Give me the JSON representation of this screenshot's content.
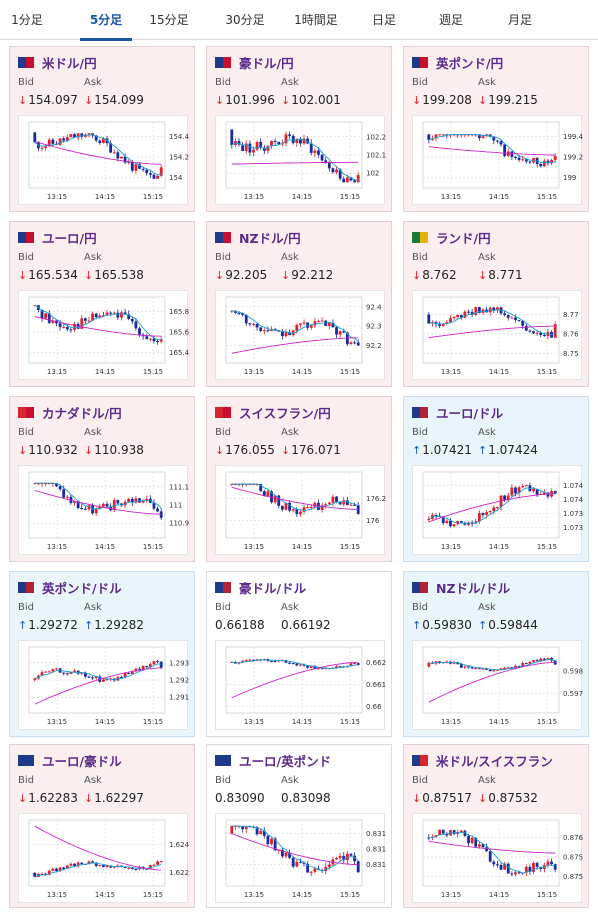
{
  "tabs": [
    {
      "label": "1分足",
      "active": false
    },
    {
      "label": "5分足",
      "active": true
    },
    {
      "label": "15分足",
      "active": false
    },
    {
      "label": "30分足",
      "active": false
    },
    {
      "label": "1時間足",
      "active": false
    },
    {
      "label": "日足",
      "active": false
    },
    {
      "label": "週足",
      "active": false
    },
    {
      "label": "月足",
      "active": false
    }
  ],
  "labels": {
    "bid": "Bid",
    "ask": "Ask"
  },
  "time_ticks": [
    "13:15",
    "14:15",
    "15:15"
  ],
  "colors": {
    "up": "#e0222a",
    "down": "#1a2a9c",
    "ma_short": "#1a9fd0",
    "ma_long": "#cc22cc"
  },
  "cards": [
    {
      "name": "米ドル/円",
      "flag": [
        "#1d3b8a",
        "#c8102e"
      ],
      "bid": "154.097",
      "ask": "154.099",
      "direction": "down",
      "theme": "jpy",
      "chart_data": {
        "type": "candlestick",
        "y_ticks": [
          "154.4",
          "154.2",
          "154"
        ],
        "y_tick_values": [
          154.4,
          154.2,
          154.0
        ],
        "ylim": [
          153.92,
          154.52
        ],
        "start": 154.44,
        "end": 154.1,
        "high": 154.43,
        "low": 153.99,
        "ma_long_start": 154.35,
        "ma_long_end": 154.13,
        "seed": 11
      }
    },
    {
      "name": "豪ドル/円",
      "flag": [
        "#1d3b8a",
        "#c8102e"
      ],
      "bid": "101.996",
      "ask": "102.001",
      "direction": "down",
      "theme": "jpy",
      "chart_data": {
        "type": "candlestick",
        "y_ticks": [
          "102.2",
          "102.1",
          "102"
        ],
        "y_tick_values": [
          102.2,
          102.1,
          102.0
        ],
        "ylim": [
          101.93,
          102.27
        ],
        "start": 102.24,
        "end": 101.99,
        "high": 102.24,
        "low": 101.95,
        "ma_long_start": 102.05,
        "ma_long_end": 102.06,
        "seed": 23
      }
    },
    {
      "name": "英ポンド/円",
      "flag": [
        "#1d3b8a",
        "#c8102e"
      ],
      "bid": "199.208",
      "ask": "199.215",
      "direction": "down",
      "theme": "jpy",
      "chart_data": {
        "type": "candlestick",
        "y_ticks": [
          "199.4",
          "199.2",
          "199"
        ],
        "y_tick_values": [
          199.4,
          199.2,
          199.0
        ],
        "ylim": [
          198.92,
          199.52
        ],
        "start": 199.42,
        "end": 199.21,
        "high": 199.42,
        "low": 198.98,
        "ma_long_start": 199.3,
        "ma_long_end": 199.22,
        "seed": 37
      }
    },
    {
      "name": "ユーロ/円",
      "flag": [
        "#1d3b8a",
        "#c8102e"
      ],
      "bid": "165.534",
      "ask": "165.538",
      "direction": "down",
      "theme": "jpy",
      "chart_data": {
        "type": "candlestick",
        "y_ticks": [
          "165.8",
          "165.6",
          "165.4"
        ],
        "y_tick_values": [
          165.8,
          165.6,
          165.4
        ],
        "ylim": [
          165.32,
          165.92
        ],
        "start": 165.86,
        "end": 165.53,
        "high": 165.86,
        "low": 165.38,
        "ma_long_start": 165.75,
        "ma_long_end": 165.56,
        "seed": 41
      }
    },
    {
      "name": "NZドル/円",
      "flag": [
        "#1d3b8a",
        "#c8102e"
      ],
      "bid": "92.205",
      "ask": "92.212",
      "direction": "down",
      "theme": "jpy",
      "chart_data": {
        "type": "candlestick",
        "y_ticks": [
          "92.4",
          "92.3",
          "92.2"
        ],
        "y_tick_values": [
          92.4,
          92.3,
          92.2
        ],
        "ylim": [
          92.12,
          92.44
        ],
        "start": 92.38,
        "end": 92.2,
        "high": 92.38,
        "low": 92.15,
        "ma_long_start": 92.16,
        "ma_long_end": 92.24,
        "seed": 53
      }
    },
    {
      "name": "ランド/円",
      "flag": [
        "#1a7a3a",
        "#e8b10a"
      ],
      "bid": "8.762",
      "ask": "8.771",
      "direction": "down",
      "theme": "jpy",
      "chart_data": {
        "type": "candlestick",
        "y_ticks": [
          "8.77",
          "8.76",
          "8.75"
        ],
        "y_tick_values": [
          8.77,
          8.76,
          8.75
        ],
        "ylim": [
          8.746,
          8.778
        ],
        "start": 8.77,
        "end": 8.765,
        "high": 8.774,
        "low": 8.752,
        "ma_long_start": 8.758,
        "ma_long_end": 8.764,
        "seed": 61
      }
    },
    {
      "name": "カナダドル/円",
      "flag": [
        "#d8262e",
        "#c8102e"
      ],
      "bid": "110.932",
      "ask": "110.938",
      "direction": "down",
      "theme": "jpy",
      "chart_data": {
        "type": "candlestick",
        "y_ticks": [
          "111.1",
          "111",
          "110.9"
        ],
        "y_tick_values": [
          111.1,
          111.0,
          110.9
        ],
        "ylim": [
          110.83,
          111.17
        ],
        "start": 111.12,
        "end": 110.93,
        "high": 111.12,
        "low": 110.86,
        "ma_long_start": 111.08,
        "ma_long_end": 110.95,
        "seed": 71
      }
    },
    {
      "name": "スイスフラン/円",
      "flag": [
        "#d8262e",
        "#c8102e"
      ],
      "bid": "176.055",
      "ask": "176.071",
      "direction": "down",
      "theme": "jpy",
      "chart_data": {
        "type": "candlestick",
        "y_ticks": [
          "176.2",
          "176"
        ],
        "y_tick_values": [
          176.2,
          176.0
        ],
        "ylim": [
          175.86,
          176.42
        ],
        "start": 176.33,
        "end": 176.06,
        "high": 176.33,
        "low": 175.93,
        "ma_long_start": 176.3,
        "ma_long_end": 176.1,
        "seed": 83
      }
    },
    {
      "name": "ユーロ/ドル",
      "flag": [
        "#1d3b8a",
        "#b22234"
      ],
      "bid": "1.07421",
      "ask": "1.07424",
      "direction": "up",
      "theme": "usd",
      "chart_data": {
        "type": "candlestick",
        "y_ticks": [
          "1.0745",
          "1.074",
          "1.0735",
          "1.073"
        ],
        "y_tick_values": [
          1.0745,
          1.074,
          1.0735,
          1.073
        ],
        "ylim": [
          1.0727,
          1.0749
        ],
        "start": 1.0733,
        "end": 1.07421,
        "high": 1.0747,
        "low": 1.073,
        "ma_long_start": 1.0732,
        "ma_long_end": 1.0742,
        "seed": 97
      }
    },
    {
      "name": "英ポンド/ドル",
      "flag": [
        "#1d3b8a",
        "#b22234"
      ],
      "bid": "1.29272",
      "ask": "1.29282",
      "direction": "up",
      "theme": "usd",
      "chart_data": {
        "type": "candlestick",
        "y_ticks": [
          "1.293",
          "1.292",
          "1.291"
        ],
        "y_tick_values": [
          1.293,
          1.292,
          1.291
        ],
        "ylim": [
          1.2902,
          1.2938
        ],
        "start": 1.292,
        "end": 1.29272,
        "high": 1.2933,
        "low": 1.2917,
        "ma_long_start": 1.2906,
        "ma_long_end": 1.2927,
        "seed": 101
      }
    },
    {
      "name": "豪ドル/ドル",
      "flag": [
        "#1d3b8a",
        "#b22234"
      ],
      "bid": "0.66188",
      "ask": "0.66192",
      "direction": "none",
      "theme": "plain",
      "chart_data": {
        "type": "candlestick",
        "y_ticks": [
          "0.662",
          "0.661",
          "0.66"
        ],
        "y_tick_values": [
          0.662,
          0.661,
          0.66
        ],
        "ylim": [
          0.6598,
          0.6626
        ],
        "start": 0.662,
        "end": 0.66188,
        "high": 0.6624,
        "low": 0.6617,
        "ma_long_start": 0.6604,
        "ma_long_end": 0.662,
        "seed": 113
      }
    },
    {
      "name": "NZドル/ドル",
      "flag": [
        "#1d3b8a",
        "#b22234"
      ],
      "bid": "0.59830",
      "ask": "0.59844",
      "direction": "up",
      "theme": "usd",
      "chart_data": {
        "type": "candlestick",
        "y_ticks": [
          "0.598",
          "0.597"
        ],
        "y_tick_values": [
          0.598,
          0.597
        ],
        "ylim": [
          0.5962,
          0.599
        ],
        "start": 0.5982,
        "end": 0.5983,
        "high": 0.5988,
        "low": 0.5979,
        "ma_long_start": 0.5966,
        "ma_long_end": 0.5984,
        "seed": 127
      }
    },
    {
      "name": "ユーロ/豪ドル",
      "flag": [
        "#1d3b8a",
        "#1d3b8a"
      ],
      "bid": "1.62283",
      "ask": "1.62297",
      "direction": "down",
      "theme": "jpy",
      "chart_data": {
        "type": "candlestick",
        "y_ticks": [
          "1.624",
          "1.622"
        ],
        "y_tick_values": [
          1.624,
          1.622
        ],
        "ylim": [
          1.6212,
          1.6256
        ],
        "start": 1.622,
        "end": 1.62283,
        "high": 1.6231,
        "low": 1.6217,
        "ma_long_start": 1.6253,
        "ma_long_end": 1.6222,
        "seed": 131
      }
    },
    {
      "name": "ユーロ/英ポンド",
      "flag": [
        "#1d3b8a",
        "#1d3b8a"
      ],
      "bid": "0.83090",
      "ask": "0.83098",
      "direction": "none",
      "theme": "plain",
      "chart_data": {
        "type": "candlestick",
        "y_ticks": [
          "0.8314",
          "0.8312",
          "0.831"
        ],
        "y_tick_values": [
          0.8314,
          0.8312,
          0.831
        ],
        "ylim": [
          0.83075,
          0.83155
        ],
        "start": 0.8314,
        "end": 0.8309,
        "high": 0.8315,
        "low": 0.8308,
        "ma_long_start": 0.8314,
        "ma_long_end": 0.831,
        "seed": 139
      }
    },
    {
      "name": "米ドル/スイスフラン",
      "flag": [
        "#1d3b8a",
        "#d8262e"
      ],
      "bid": "0.87517",
      "ask": "0.87532",
      "direction": "down",
      "theme": "jpy",
      "chart_data": {
        "type": "candlestick",
        "y_ticks": [
          "0.876",
          "0.8755",
          "0.875"
        ],
        "y_tick_values": [
          0.876,
          0.8755,
          0.875
        ],
        "ylim": [
          0.8748,
          0.8764
        ],
        "start": 0.876,
        "end": 0.87517,
        "high": 0.8762,
        "low": 0.875,
        "ma_long_start": 0.8759,
        "ma_long_end": 0.8756,
        "seed": 151
      }
    }
  ]
}
